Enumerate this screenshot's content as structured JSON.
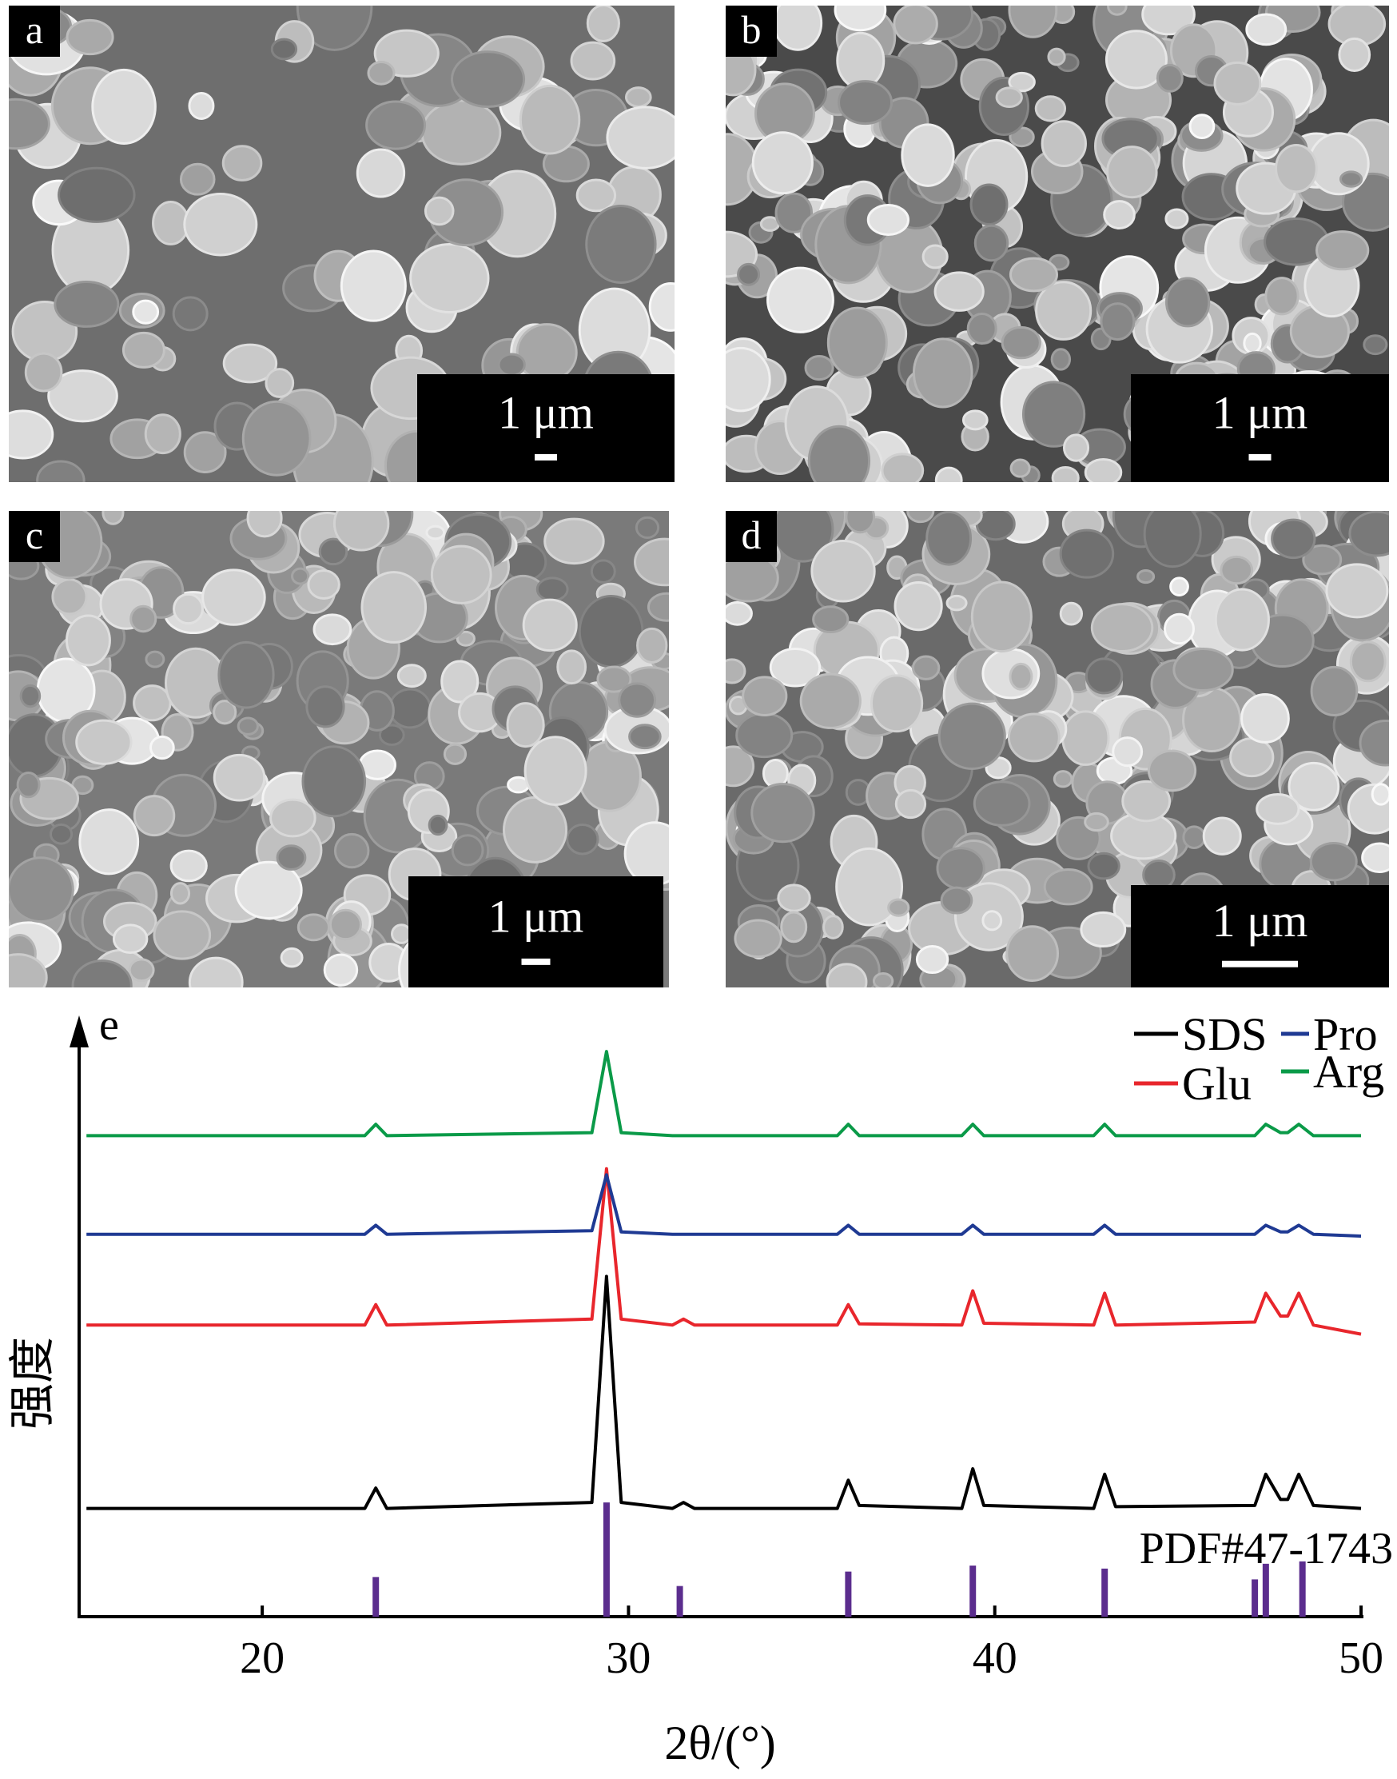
{
  "panels": [
    {
      "label": "a",
      "scale_bar": "1 μm"
    },
    {
      "label": "b",
      "scale_bar": "1 μm"
    },
    {
      "label": "c",
      "scale_bar": "1 μm"
    },
    {
      "label": "d",
      "scale_bar": "1 μm"
    }
  ],
  "chart_data": {
    "type": "line",
    "panel_label": "e",
    "x_label": "2θ/(°)",
    "y_label": "强度",
    "xlim": [
      15,
      50
    ],
    "xticks": [
      20,
      30,
      40,
      50
    ],
    "ylim": [
      0,
      100
    ],
    "grid": false,
    "legend": "top-right",
    "x": [
      15.2,
      22.8,
      23.1,
      23.4,
      29.0,
      29.4,
      29.8,
      31.2,
      31.5,
      31.8,
      35.7,
      36.0,
      36.3,
      39.1,
      39.4,
      39.7,
      42.7,
      43.0,
      43.3,
      47.1,
      47.4,
      47.8,
      48.0,
      48.3,
      48.7,
      50.0
    ],
    "series": [
      {
        "name": "SDS",
        "color": "#000000",
        "values": [
          18,
          18,
          21.4,
          18,
          19,
          56.6,
          19,
          18,
          19,
          18,
          18,
          22.7,
          18.5,
          18,
          24.6,
          18.5,
          18,
          23.7,
          18.3,
          18.5,
          23.7,
          19.5,
          19.5,
          23.7,
          18.5,
          18
        ]
      },
      {
        "name": "Glu",
        "color": "#e8262c",
        "values": [
          48.5,
          48.5,
          51.9,
          48.5,
          49.5,
          74.5,
          49.5,
          48.5,
          49.5,
          48.5,
          48.5,
          51.9,
          48.7,
          48.5,
          54.2,
          48.8,
          48.5,
          53.8,
          48.5,
          49,
          53.8,
          50,
          50,
          53.8,
          48.5,
          47
        ]
      },
      {
        "name": "Pro",
        "color": "#1f3a93",
        "values": [
          63.6,
          63.6,
          65.1,
          63.6,
          64.2,
          73.5,
          64,
          63.6,
          63.6,
          63.6,
          63.6,
          65.1,
          63.6,
          63.6,
          65.1,
          63.6,
          63.6,
          65.1,
          63.6,
          63.6,
          65.1,
          64,
          64,
          65.1,
          63.6,
          63.3
        ]
      },
      {
        "name": "Arg",
        "color": "#0a9a48",
        "values": [
          80,
          80,
          81.9,
          80,
          80.5,
          94,
          80.5,
          80,
          80,
          80,
          80,
          81.9,
          80,
          80,
          81.9,
          80,
          80,
          81.9,
          80,
          80,
          81.9,
          80.5,
          80.5,
          81.9,
          80,
          80
        ]
      }
    ],
    "reference": {
      "name": "PDF#47-1743",
      "color": "#5b2d8e",
      "x": [
        23.1,
        29.4,
        31.4,
        36.0,
        39.4,
        43.0,
        47.1,
        47.4,
        48.4
      ],
      "values": [
        6.6,
        19,
        5.1,
        7.5,
        8.5,
        8,
        6.2,
        8.8,
        9.2
      ]
    }
  }
}
